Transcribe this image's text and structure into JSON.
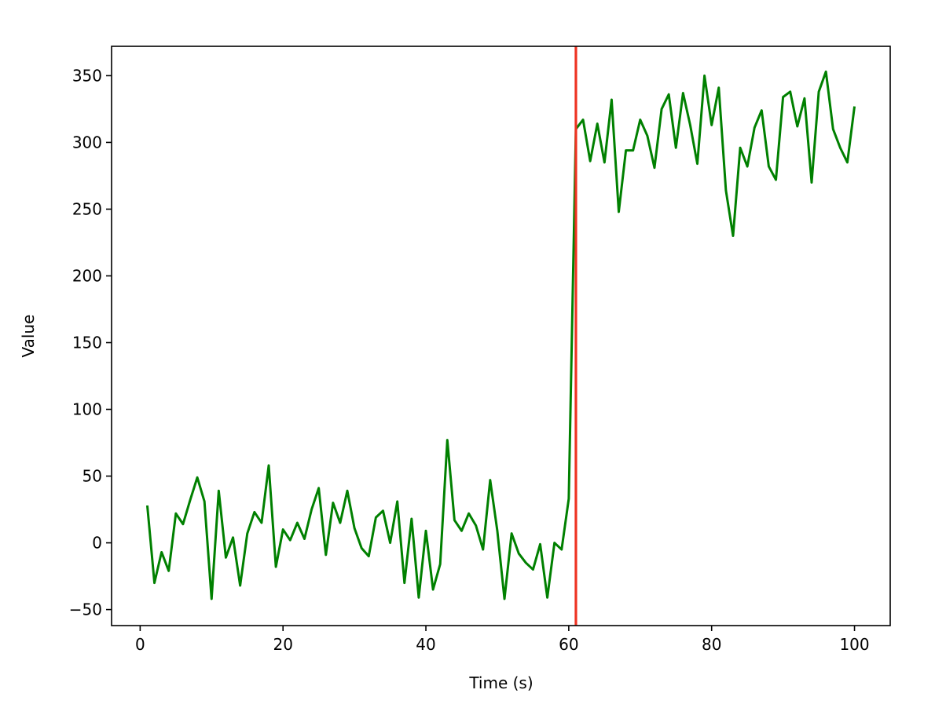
{
  "chart_data": {
    "type": "line",
    "title": "",
    "xlabel": "Time (s)",
    "ylabel": "Value",
    "xlim": [
      -4,
      105
    ],
    "ylim": [
      -62,
      372
    ],
    "x_ticks": [
      0,
      20,
      40,
      60,
      80,
      100
    ],
    "y_ticks": [
      -50,
      0,
      50,
      100,
      150,
      200,
      250,
      300,
      350
    ],
    "x_tick_labels": [
      "0",
      "20",
      "40",
      "60",
      "80",
      "100"
    ],
    "y_tick_labels": [
      "−50",
      "0",
      "50",
      "100",
      "150",
      "200",
      "250",
      "300",
      "350"
    ],
    "grid": false,
    "legend": "none",
    "series": [
      {
        "color": "#008000",
        "x": [
          1,
          2,
          3,
          4,
          5,
          6,
          7,
          8,
          9,
          10,
          11,
          12,
          13,
          14,
          15,
          16,
          17,
          18,
          19,
          20,
          21,
          22,
          23,
          24,
          25,
          26,
          27,
          28,
          29,
          30,
          31,
          32,
          33,
          34,
          35,
          36,
          37,
          38,
          39,
          40,
          41,
          42,
          43,
          44,
          45,
          46,
          47,
          48,
          49,
          50,
          51,
          52,
          53,
          54,
          55,
          56,
          57,
          58,
          59,
          60,
          61,
          62,
          63,
          64,
          65,
          66,
          67,
          68,
          69,
          70,
          71,
          72,
          73,
          74,
          75,
          76,
          77,
          78,
          79,
          80,
          81,
          82,
          83,
          84,
          85,
          86,
          87,
          88,
          89,
          90,
          91,
          92,
          93,
          94,
          95,
          96,
          97,
          98,
          99,
          100
        ],
        "values": [
          28,
          -30,
          -7,
          -21,
          22,
          14,
          32,
          49,
          31,
          -42,
          39,
          -11,
          4,
          -32,
          7,
          23,
          15,
          58,
          -18,
          10,
          2,
          15,
          3,
          25,
          41,
          -9,
          30,
          15,
          39,
          11,
          -4,
          -10,
          19,
          24,
          0,
          31,
          -30,
          18,
          -41,
          9,
          -35,
          -16,
          77,
          17,
          9,
          22,
          13,
          -5,
          47,
          9,
          -42,
          7,
          -8,
          -15,
          -20,
          -1,
          -41,
          0,
          -5,
          33,
          310,
          317,
          286,
          314,
          285,
          332,
          248,
          294,
          294,
          317,
          305,
          281,
          325,
          336,
          296,
          337,
          313,
          284,
          350,
          313,
          341,
          264,
          230,
          296,
          282,
          311,
          324,
          282,
          272,
          334,
          338,
          312,
          333,
          270,
          338,
          353,
          310,
          296,
          285,
          327
        ]
      }
    ],
    "vertical_lines": [
      {
        "x": 61,
        "color": "#ee3322"
      }
    ]
  }
}
